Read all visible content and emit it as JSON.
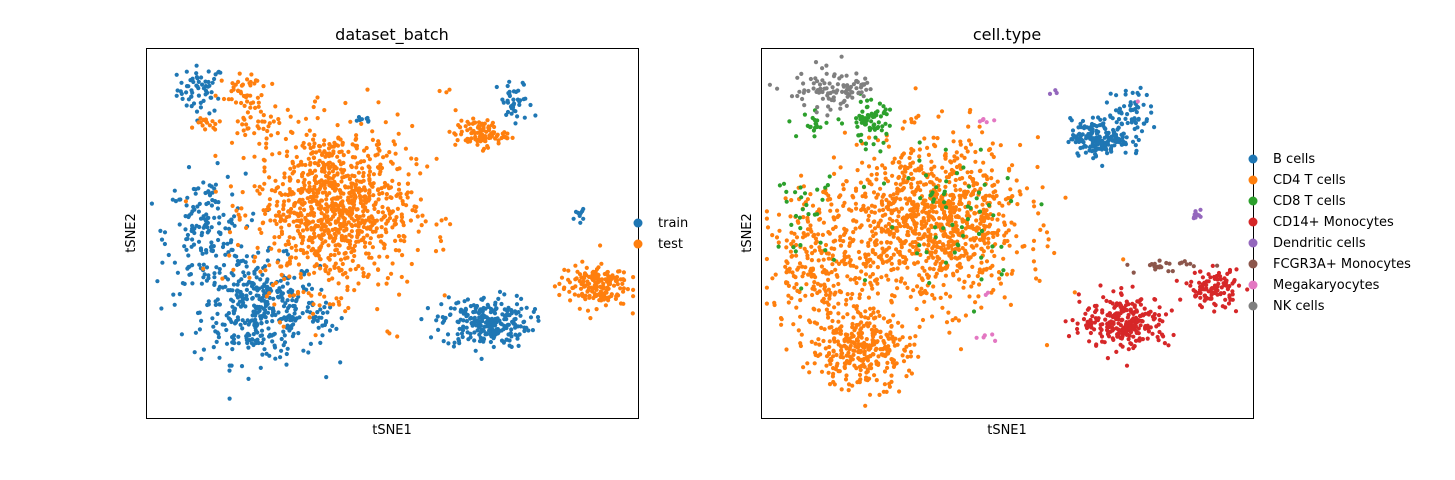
{
  "chart_data": [
    {
      "type": "scatter",
      "title": "dataset_batch",
      "xlabel": "tSNE1",
      "ylabel": "tSNE2",
      "grid": false,
      "ticks": false,
      "legend_position": "right",
      "xlim": [
        0,
        100
      ],
      "ylim": [
        0,
        100
      ],
      "series": [
        {
          "name": "train",
          "color": "#1f77b4",
          "clusters": [
            {
              "cx": 11,
              "cy": 89,
              "sx": 2.4,
              "sy": 3.2,
              "n": 60
            },
            {
              "cx": 23,
              "cy": 29,
              "sx": 6,
              "sy": 7,
              "n": 380
            },
            {
              "cx": 12,
              "cy": 50,
              "sx": 4,
              "sy": 8,
              "n": 170
            },
            {
              "cx": 69,
              "cy": 26,
              "sx": 4.5,
              "sy": 3.5,
              "n": 260
            },
            {
              "cx": 75,
              "cy": 85,
              "sx": 1.8,
              "sy": 3.2,
              "n": 40
            },
            {
              "cx": 44,
              "cy": 81,
              "sx": 0.8,
              "sy": 0.5,
              "n": 8
            },
            {
              "cx": 88,
              "cy": 55,
              "sx": 0.5,
              "sy": 0.8,
              "n": 10
            },
            {
              "cx": 36,
              "cy": 27,
              "sx": 1.2,
              "sy": 3,
              "n": 20
            }
          ]
        },
        {
          "name": "test",
          "color": "#ff7f0e",
          "clusters": [
            {
              "cx": 38,
              "cy": 57,
              "sx": 8,
              "sy": 11,
              "n": 1000
            },
            {
              "cx": 19,
              "cy": 90,
              "sx": 1.8,
              "sy": 2,
              "n": 30
            },
            {
              "cx": 22,
              "cy": 81,
              "sx": 2.2,
              "sy": 3.5,
              "n": 45
            },
            {
              "cx": 12,
              "cy": 80,
              "sx": 1.5,
              "sy": 1.2,
              "n": 15
            },
            {
              "cx": 68,
              "cy": 77,
              "sx": 2.6,
              "sy": 1.8,
              "n": 100
            },
            {
              "cx": 91,
              "cy": 36,
              "sx": 3.5,
              "sy": 3,
              "n": 170
            },
            {
              "cx": 60,
              "cy": 88,
              "sx": 1.5,
              "sy": 0.5,
              "n": 3
            },
            {
              "cx": 50,
              "cy": 22,
              "sx": 2.5,
              "sy": 0.8,
              "n": 3
            }
          ]
        }
      ]
    },
    {
      "type": "scatter",
      "title": "cell.type",
      "xlabel": "tSNE1",
      "ylabel": "tSNE2",
      "grid": false,
      "ticks": false,
      "legend_position": "right",
      "xlim": [
        0,
        100
      ],
      "ylim": [
        0,
        100
      ],
      "series": [
        {
          "name": "B cells",
          "color": "#1f77b4",
          "clusters": [
            {
              "cx": 69,
              "cy": 76,
              "sx": 3,
              "sy": 2.5,
              "n": 180
            },
            {
              "cx": 75,
              "cy": 83,
              "sx": 2,
              "sy": 3.5,
              "n": 60
            }
          ]
        },
        {
          "name": "CD4 T cells",
          "color": "#ff7f0e",
          "clusters": [
            {
              "cx": 35,
              "cy": 53,
              "sx": 9,
              "sy": 11,
              "n": 1000
            },
            {
              "cx": 13,
              "cy": 42,
              "sx": 6,
              "sy": 10,
              "n": 300
            },
            {
              "cx": 20,
              "cy": 18,
              "sx": 5,
              "sy": 5,
              "n": 300
            }
          ]
        },
        {
          "name": "CD8 T cells",
          "color": "#2ca02c",
          "clusters": [
            {
              "cx": 22,
              "cy": 80,
              "sx": 2,
              "sy": 3,
              "n": 70
            },
            {
              "cx": 11,
              "cy": 80,
              "sx": 2.5,
              "sy": 1.5,
              "n": 20
            },
            {
              "cx": 9,
              "cy": 55,
              "sx": 3,
              "sy": 6,
              "n": 30
            },
            {
              "cx": 40,
              "cy": 55,
              "sx": 8,
              "sy": 10,
              "n": 60
            }
          ]
        },
        {
          "name": "CD14+ Monocytes",
          "color": "#d62728",
          "clusters": [
            {
              "cx": 74,
              "cy": 26,
              "sx": 4.5,
              "sy": 3.5,
              "n": 260
            },
            {
              "cx": 92,
              "cy": 35,
              "sx": 2.5,
              "sy": 2.5,
              "n": 110
            }
          ]
        },
        {
          "name": "Dendritic cells",
          "color": "#9467bd",
          "clusters": [
            {
              "cx": 88.5,
              "cy": 55,
              "sx": 0.5,
              "sy": 0.8,
              "n": 10
            },
            {
              "cx": 60,
              "cy": 88,
              "sx": 0.6,
              "sy": 0.4,
              "n": 3
            }
          ]
        },
        {
          "name": "FCGR3A+ Monocytes",
          "color": "#8c564b",
          "clusters": [
            {
              "cx": 82,
              "cy": 41,
              "sx": 3,
              "sy": 0.8,
              "n": 25
            }
          ]
        },
        {
          "name": "Megakaryocytes",
          "color": "#e377c2",
          "clusters": [
            {
              "cx": 45,
              "cy": 81,
              "sx": 1,
              "sy": 0.4,
              "n": 5
            },
            {
              "cx": 47,
              "cy": 22,
              "sx": 2,
              "sy": 0.6,
              "n": 5
            },
            {
              "cx": 45,
              "cy": 35,
              "sx": 1,
              "sy": 1,
              "n": 2
            },
            {
              "cx": 76,
              "cy": 86,
              "sx": 0.3,
              "sy": 0.3,
              "n": 1
            }
          ]
        },
        {
          "name": "NK cells",
          "color": "#7f7f7f",
          "clusters": [
            {
              "cx": 12,
              "cy": 88,
              "sx": 3.5,
              "sy": 3,
              "n": 60
            },
            {
              "cx": 19,
              "cy": 89,
              "sx": 2,
              "sy": 2.2,
              "n": 40
            }
          ]
        }
      ]
    }
  ]
}
